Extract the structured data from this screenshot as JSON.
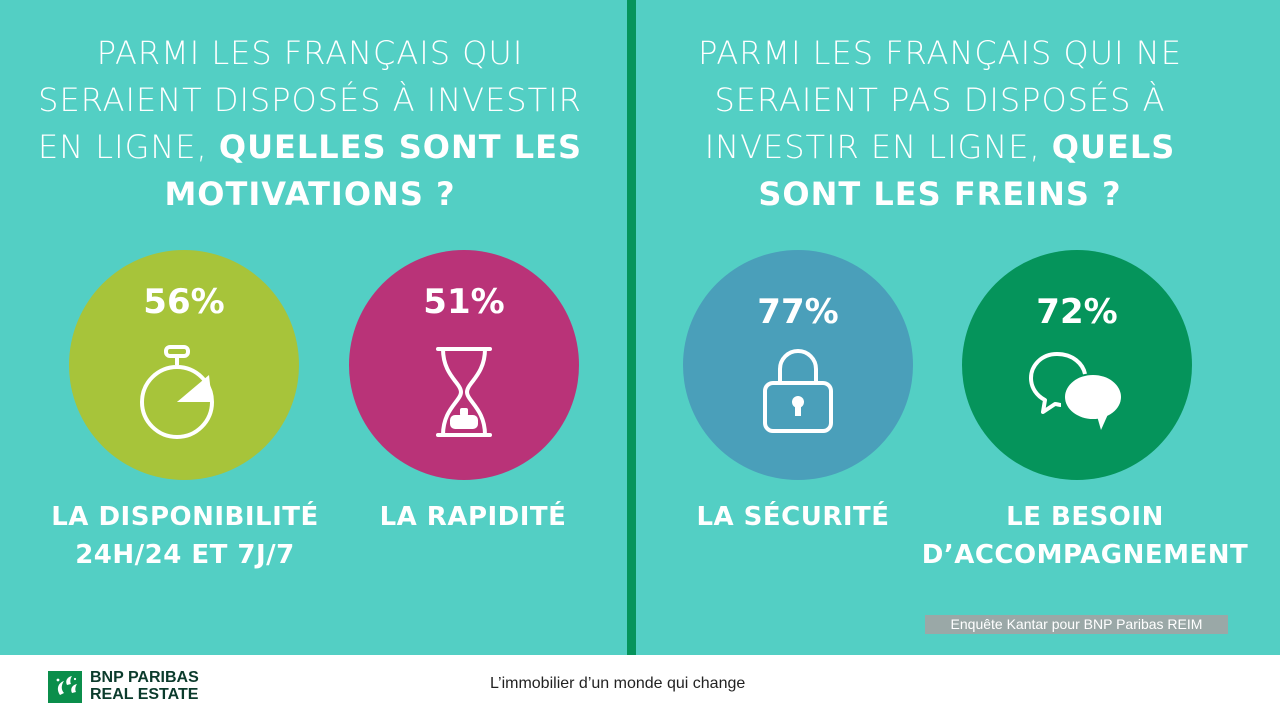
{
  "left": {
    "heading_light": "PARMI LES FRANÇAIS QUI SERAIENT DISPOSÉS À INVESTIR EN LIGNE, ",
    "heading_bold": "QUELLES SONT LES MOTIVATIONS ?",
    "items": [
      {
        "percent": "56%",
        "label_line1": "LA DISPONIBILITÉ",
        "label_line2": "24H/24 ET 7J/7",
        "icon": "stopwatch-icon",
        "color": "#a7c43a"
      },
      {
        "percent": "51%",
        "label_line1": "LA RAPIDITÉ",
        "label_line2": "",
        "icon": "hourglass-icon",
        "color": "#b93378"
      }
    ]
  },
  "right": {
    "heading_light": "PARMI LES FRANÇAIS QUI NE SERAIENT PAS DISPOSÉS À INVESTIR EN LIGNE, ",
    "heading_bold": "QUELS SONT LES FREINS ?",
    "items": [
      {
        "percent": "77%",
        "label_line1": "LA SÉCURITÉ",
        "label_line2": "",
        "icon": "padlock-icon",
        "color": "#4a9fba"
      },
      {
        "percent": "72%",
        "label_line1": "LE BESOIN",
        "label_line2": "D’ACCOMPAGNEMENT",
        "icon": "chat-bubbles-icon",
        "color": "#05945b"
      }
    ]
  },
  "source": "Enquête Kantar pour BNP Paribas REIM",
  "footer": {
    "logo_line1": "BNP PARIBAS",
    "logo_line2": "REAL ESTATE",
    "tagline": "L’immobilier d’un monde qui change"
  },
  "colors": {
    "background": "#53cfc4",
    "divider": "#05945b"
  }
}
